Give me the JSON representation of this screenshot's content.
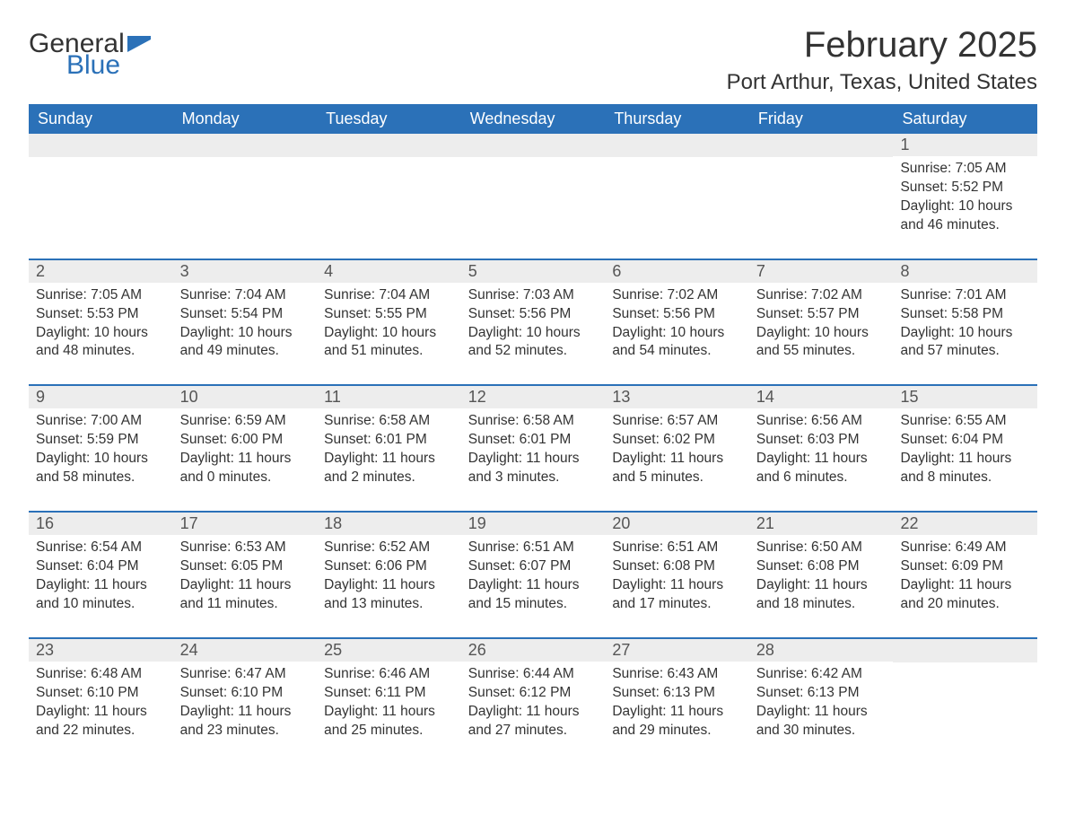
{
  "logo": {
    "word1": "General",
    "word2": "Blue"
  },
  "title": "February 2025",
  "location": "Port Arthur, Texas, United States",
  "colors": {
    "brand_blue": "#2b71b8",
    "header_text": "#ffffff",
    "daynum_bg": "#ededed",
    "body_text": "#333333",
    "page_bg": "#ffffff"
  },
  "typography": {
    "title_fontsize": 40,
    "location_fontsize": 24,
    "dayhead_fontsize": 18,
    "daynum_fontsize": 18,
    "info_fontsize": 15.5,
    "font_family": "Segoe UI"
  },
  "day_headers": [
    "Sunday",
    "Monday",
    "Tuesday",
    "Wednesday",
    "Thursday",
    "Friday",
    "Saturday"
  ],
  "weeks": [
    [
      null,
      null,
      null,
      null,
      null,
      null,
      {
        "n": "1",
        "sunrise": "7:05 AM",
        "sunset": "5:52 PM",
        "dl1": "Daylight: 10 hours",
        "dl2": "and 46 minutes."
      }
    ],
    [
      {
        "n": "2",
        "sunrise": "7:05 AM",
        "sunset": "5:53 PM",
        "dl1": "Daylight: 10 hours",
        "dl2": "and 48 minutes."
      },
      {
        "n": "3",
        "sunrise": "7:04 AM",
        "sunset": "5:54 PM",
        "dl1": "Daylight: 10 hours",
        "dl2": "and 49 minutes."
      },
      {
        "n": "4",
        "sunrise": "7:04 AM",
        "sunset": "5:55 PM",
        "dl1": "Daylight: 10 hours",
        "dl2": "and 51 minutes."
      },
      {
        "n": "5",
        "sunrise": "7:03 AM",
        "sunset": "5:56 PM",
        "dl1": "Daylight: 10 hours",
        "dl2": "and 52 minutes."
      },
      {
        "n": "6",
        "sunrise": "7:02 AM",
        "sunset": "5:56 PM",
        "dl1": "Daylight: 10 hours",
        "dl2": "and 54 minutes."
      },
      {
        "n": "7",
        "sunrise": "7:02 AM",
        "sunset": "5:57 PM",
        "dl1": "Daylight: 10 hours",
        "dl2": "and 55 minutes."
      },
      {
        "n": "8",
        "sunrise": "7:01 AM",
        "sunset": "5:58 PM",
        "dl1": "Daylight: 10 hours",
        "dl2": "and 57 minutes."
      }
    ],
    [
      {
        "n": "9",
        "sunrise": "7:00 AM",
        "sunset": "5:59 PM",
        "dl1": "Daylight: 10 hours",
        "dl2": "and 58 minutes."
      },
      {
        "n": "10",
        "sunrise": "6:59 AM",
        "sunset": "6:00 PM",
        "dl1": "Daylight: 11 hours",
        "dl2": "and 0 minutes."
      },
      {
        "n": "11",
        "sunrise": "6:58 AM",
        "sunset": "6:01 PM",
        "dl1": "Daylight: 11 hours",
        "dl2": "and 2 minutes."
      },
      {
        "n": "12",
        "sunrise": "6:58 AM",
        "sunset": "6:01 PM",
        "dl1": "Daylight: 11 hours",
        "dl2": "and 3 minutes."
      },
      {
        "n": "13",
        "sunrise": "6:57 AM",
        "sunset": "6:02 PM",
        "dl1": "Daylight: 11 hours",
        "dl2": "and 5 minutes."
      },
      {
        "n": "14",
        "sunrise": "6:56 AM",
        "sunset": "6:03 PM",
        "dl1": "Daylight: 11 hours",
        "dl2": "and 6 minutes."
      },
      {
        "n": "15",
        "sunrise": "6:55 AM",
        "sunset": "6:04 PM",
        "dl1": "Daylight: 11 hours",
        "dl2": "and 8 minutes."
      }
    ],
    [
      {
        "n": "16",
        "sunrise": "6:54 AM",
        "sunset": "6:04 PM",
        "dl1": "Daylight: 11 hours",
        "dl2": "and 10 minutes."
      },
      {
        "n": "17",
        "sunrise": "6:53 AM",
        "sunset": "6:05 PM",
        "dl1": "Daylight: 11 hours",
        "dl2": "and 11 minutes."
      },
      {
        "n": "18",
        "sunrise": "6:52 AM",
        "sunset": "6:06 PM",
        "dl1": "Daylight: 11 hours",
        "dl2": "and 13 minutes."
      },
      {
        "n": "19",
        "sunrise": "6:51 AM",
        "sunset": "6:07 PM",
        "dl1": "Daylight: 11 hours",
        "dl2": "and 15 minutes."
      },
      {
        "n": "20",
        "sunrise": "6:51 AM",
        "sunset": "6:08 PM",
        "dl1": "Daylight: 11 hours",
        "dl2": "and 17 minutes."
      },
      {
        "n": "21",
        "sunrise": "6:50 AM",
        "sunset": "6:08 PM",
        "dl1": "Daylight: 11 hours",
        "dl2": "and 18 minutes."
      },
      {
        "n": "22",
        "sunrise": "6:49 AM",
        "sunset": "6:09 PM",
        "dl1": "Daylight: 11 hours",
        "dl2": "and 20 minutes."
      }
    ],
    [
      {
        "n": "23",
        "sunrise": "6:48 AM",
        "sunset": "6:10 PM",
        "dl1": "Daylight: 11 hours",
        "dl2": "and 22 minutes."
      },
      {
        "n": "24",
        "sunrise": "6:47 AM",
        "sunset": "6:10 PM",
        "dl1": "Daylight: 11 hours",
        "dl2": "and 23 minutes."
      },
      {
        "n": "25",
        "sunrise": "6:46 AM",
        "sunset": "6:11 PM",
        "dl1": "Daylight: 11 hours",
        "dl2": "and 25 minutes."
      },
      {
        "n": "26",
        "sunrise": "6:44 AM",
        "sunset": "6:12 PM",
        "dl1": "Daylight: 11 hours",
        "dl2": "and 27 minutes."
      },
      {
        "n": "27",
        "sunrise": "6:43 AM",
        "sunset": "6:13 PM",
        "dl1": "Daylight: 11 hours",
        "dl2": "and 29 minutes."
      },
      {
        "n": "28",
        "sunrise": "6:42 AM",
        "sunset": "6:13 PM",
        "dl1": "Daylight: 11 hours",
        "dl2": "and 30 minutes."
      },
      null
    ]
  ],
  "labels": {
    "sunrise_prefix": "Sunrise: ",
    "sunset_prefix": "Sunset: "
  }
}
